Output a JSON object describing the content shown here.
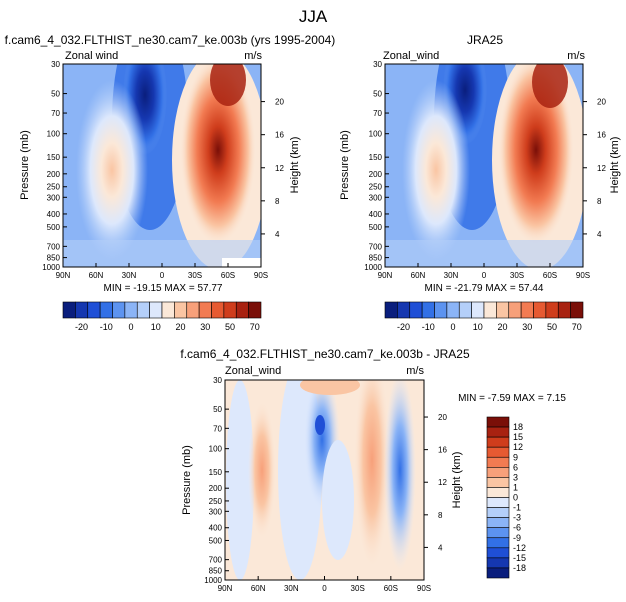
{
  "figure": {
    "title": "JJA"
  },
  "colors": {
    "full_field": [
      "#0a1e7d",
      "#1537b0",
      "#1f4fd6",
      "#3270e6",
      "#5c93f0",
      "#8bb4f6",
      "#b4cff9",
      "#dde8fc",
      "#fbe8d8",
      "#fac5a3",
      "#f7a07a",
      "#f27b52",
      "#e65a32",
      "#cf3d1c",
      "#a82211",
      "#7a0f08"
    ],
    "difference": [
      "#0a1e7d",
      "#1537b0",
      "#1f4fd6",
      "#3270e6",
      "#5c93f0",
      "#8bb4f6",
      "#b4cff9",
      "#dde8fc",
      "#fbe8d8",
      "#fac5a3",
      "#f7a07a",
      "#f27b52",
      "#e65a32",
      "#cf3d1c",
      "#a82211",
      "#7a0f08"
    ]
  },
  "chart_data": [
    {
      "type": "heatmap",
      "panel": "model",
      "title": "f.cam6_4_032.FLTHIST_ne30.cam7_ke.003b (yrs 1995-2004)",
      "left_label": "Zonal wind",
      "units": "m/s",
      "ylabel": "Pressure (mb)",
      "right_axis_label": "Height (km)",
      "xticks": [
        "90N",
        "60N",
        "30N",
        "0",
        "30S",
        "60S",
        "90S"
      ],
      "yticks": [
        "30",
        "50",
        "70",
        "100",
        "150",
        "200",
        "250",
        "300",
        "400",
        "500",
        "700",
        "850",
        "1000"
      ],
      "right_ticks": [
        "20",
        "16",
        "12",
        "8",
        "4"
      ],
      "stats": "MIN = -19.15   MAX = 57.77",
      "colorbar_labels": [
        "-20",
        "-10",
        "0",
        "10",
        "20",
        "30",
        "50",
        "70"
      ],
      "jets": [
        {
          "lat": -48,
          "pressure": 100,
          "value": 57.77
        },
        {
          "lat": 45,
          "pressure": 200,
          "value": 20
        },
        {
          "lat": 8,
          "pressure": 30,
          "value": -19.15
        }
      ]
    },
    {
      "type": "heatmap",
      "panel": "reanalysis",
      "title": "JRA25",
      "left_label": "Zonal_wind",
      "units": "m/s",
      "ylabel": "Pressure (mb)",
      "right_axis_label": "Height (km)",
      "xticks": [
        "90N",
        "60N",
        "30N",
        "0",
        "30S",
        "60S",
        "90S"
      ],
      "yticks": [
        "30",
        "50",
        "70",
        "100",
        "150",
        "200",
        "250",
        "300",
        "400",
        "500",
        "700",
        "850",
        "1000"
      ],
      "right_ticks": [
        "20",
        "16",
        "12",
        "8",
        "4"
      ],
      "stats": "MIN = -21.79   MAX = 57.44",
      "colorbar_labels": [
        "-20",
        "-10",
        "0",
        "10",
        "20",
        "30",
        "50",
        "70"
      ],
      "jets": [
        {
          "lat": -48,
          "pressure": 100,
          "value": 57.44
        },
        {
          "lat": 45,
          "pressure": 200,
          "value": 20
        },
        {
          "lat": 8,
          "pressure": 30,
          "value": -21.79
        }
      ]
    },
    {
      "type": "heatmap",
      "panel": "difference",
      "title": "f.cam6_4_032.FLTHIST_ne30.cam7_ke.003b - JRA25",
      "left_label": "Zonal_wind",
      "units": "m/s",
      "ylabel": "Pressure (mb)",
      "right_axis_label": "Height (km)",
      "xticks": [
        "90N",
        "60N",
        "30N",
        "0",
        "30S",
        "60S",
        "90S"
      ],
      "yticks": [
        "30",
        "50",
        "70",
        "100",
        "150",
        "200",
        "250",
        "300",
        "400",
        "500",
        "700",
        "850",
        "1000"
      ],
      "right_ticks": [
        "20",
        "16",
        "12",
        "8",
        "4"
      ],
      "stats": "MIN =  -7.59   MAX =   7.15",
      "colorbar_labels": [
        "18",
        "15",
        "12",
        "9",
        "6",
        "3",
        "1",
        "0",
        "-1",
        "-3",
        "-6",
        "-9",
        "-12",
        "-15",
        "-18"
      ]
    }
  ]
}
